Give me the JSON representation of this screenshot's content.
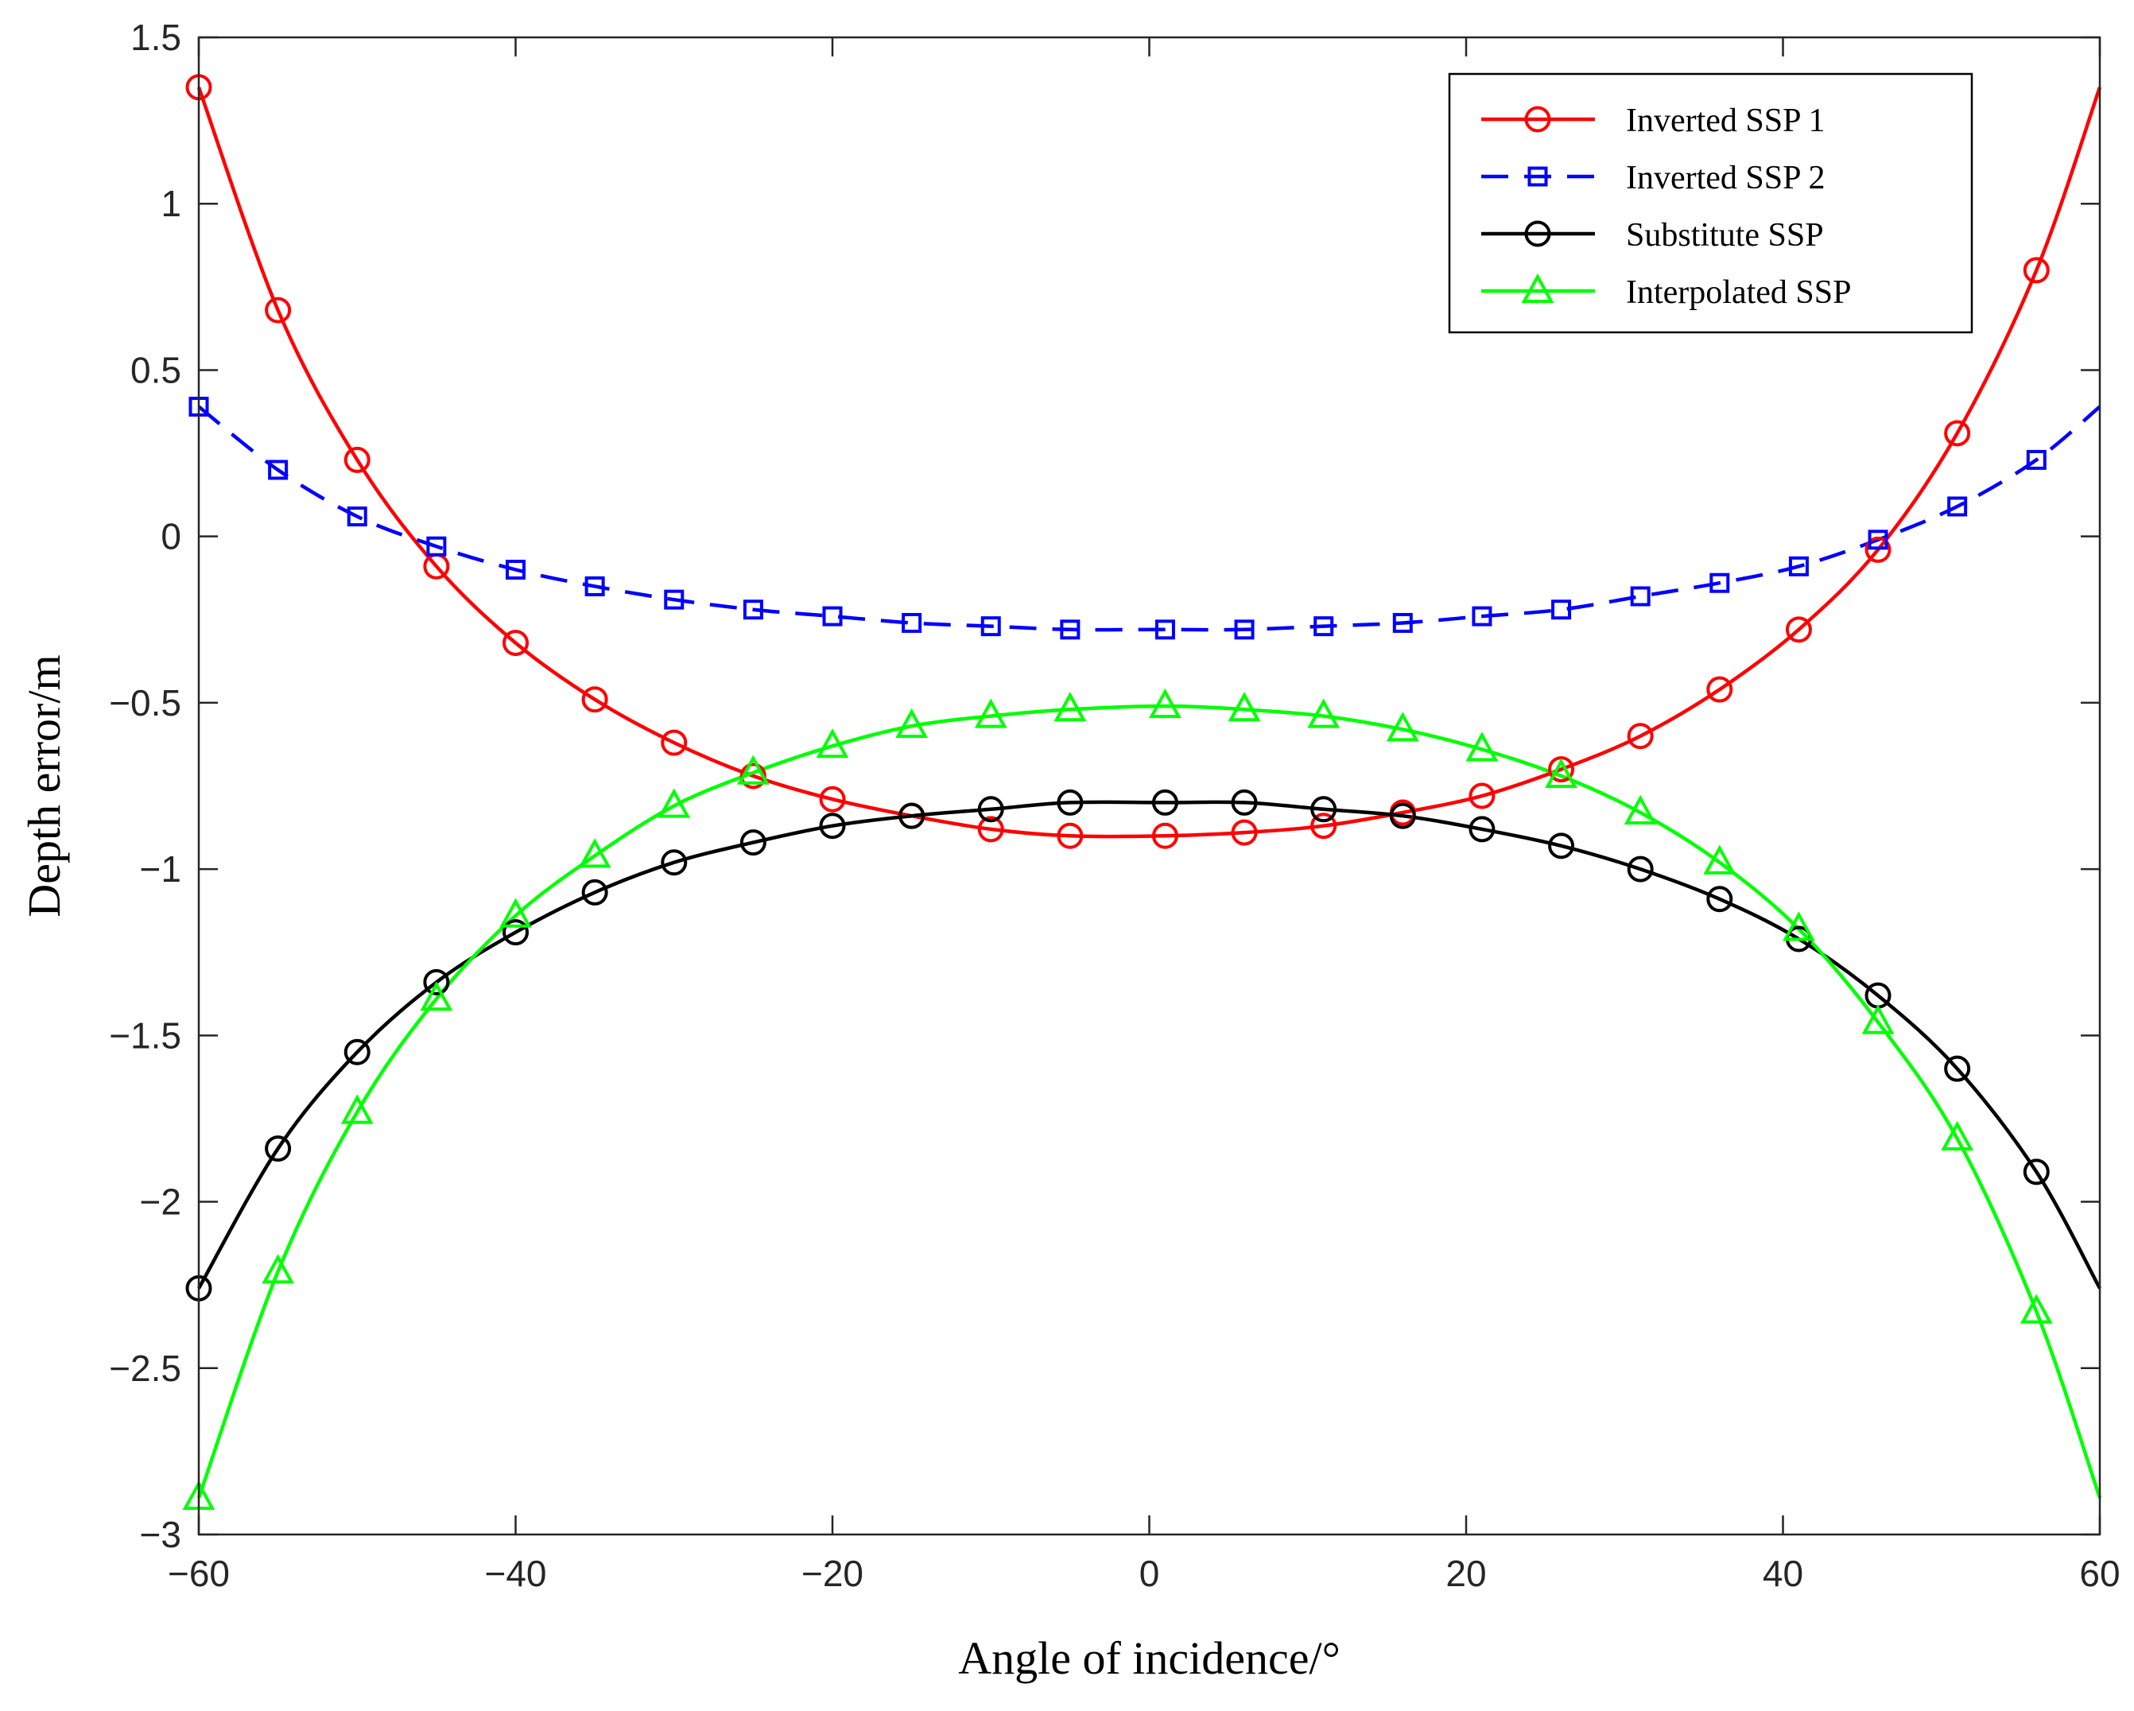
{
  "chart_data": {
    "type": "line",
    "title": "",
    "xlabel": "Angle of incidence/°",
    "ylabel": "Depth error/m",
    "xlim": [
      -60,
      60
    ],
    "ylim": [
      -3,
      1.5
    ],
    "xticks": [
      -60,
      -40,
      -20,
      0,
      20,
      40,
      60
    ],
    "xtick_labels": [
      "−60",
      "−40",
      "−20",
      "0",
      "20",
      "40",
      "60"
    ],
    "yticks": [
      1.5,
      1,
      0.5,
      0,
      -0.5,
      -1,
      -1.5,
      -2,
      -2.5,
      -3
    ],
    "ytick_labels": [
      "1.5",
      "1",
      "0.5",
      "0",
      "−0.5",
      "−1",
      "−1.5",
      "−2",
      "−2.5",
      "−3"
    ],
    "grid": false,
    "legend_position": "top-right",
    "marker_x": [
      -60,
      -55,
      -50,
      -45,
      -40,
      -35,
      -30,
      -25,
      -20,
      -15,
      -10,
      -5,
      1,
      6,
      11,
      16,
      21,
      26,
      31,
      36,
      41,
      46,
      51,
      56
    ],
    "series": [
      {
        "name": "Inverted SSP 1",
        "color": "#ff0000",
        "marker": "circle",
        "line": "solid",
        "values": [
          1.35,
          0.68,
          0.23,
          -0.09,
          -0.32,
          -0.49,
          -0.62,
          -0.72,
          -0.79,
          -0.84,
          -0.88,
          -0.9,
          -0.9,
          -0.89,
          -0.87,
          -0.83,
          -0.78,
          -0.7,
          -0.6,
          -0.46,
          -0.28,
          -0.04,
          0.31,
          0.8
        ],
        "end_value": 1.35
      },
      {
        "name": "Inverted SSP 2",
        "color": "#0000ff",
        "marker": "square",
        "line": "dashed",
        "values": [
          0.39,
          0.2,
          0.06,
          -0.03,
          -0.1,
          -0.15,
          -0.19,
          -0.22,
          -0.24,
          -0.26,
          -0.27,
          -0.28,
          -0.28,
          -0.28,
          -0.27,
          -0.26,
          -0.24,
          -0.22,
          -0.18,
          -0.14,
          -0.09,
          -0.01,
          0.09,
          0.23
        ],
        "end_value": 0.39
      },
      {
        "name": "Substitute SSP",
        "color": "#000000",
        "marker": "circle",
        "line": "solid",
        "values": [
          -2.26,
          -1.84,
          -1.55,
          -1.34,
          -1.19,
          -1.07,
          -0.98,
          -0.92,
          -0.87,
          -0.84,
          -0.82,
          -0.8,
          -0.8,
          -0.8,
          -0.82,
          -0.84,
          -0.88,
          -0.93,
          -1.0,
          -1.09,
          -1.21,
          -1.38,
          -1.6,
          -1.91
        ],
        "end_value": -2.26
      },
      {
        "name": "Interpolated SSP",
        "color": "#00ff00",
        "marker": "triangle",
        "line": "solid",
        "values": [
          -2.89,
          -2.21,
          -1.73,
          -1.39,
          -1.14,
          -0.96,
          -0.81,
          -0.71,
          -0.63,
          -0.57,
          -0.54,
          -0.52,
          -0.51,
          -0.52,
          -0.54,
          -0.58,
          -0.64,
          -0.72,
          -0.83,
          -0.98,
          -1.18,
          -1.46,
          -1.81,
          -2.33
        ],
        "end_value": -2.89
      }
    ]
  }
}
